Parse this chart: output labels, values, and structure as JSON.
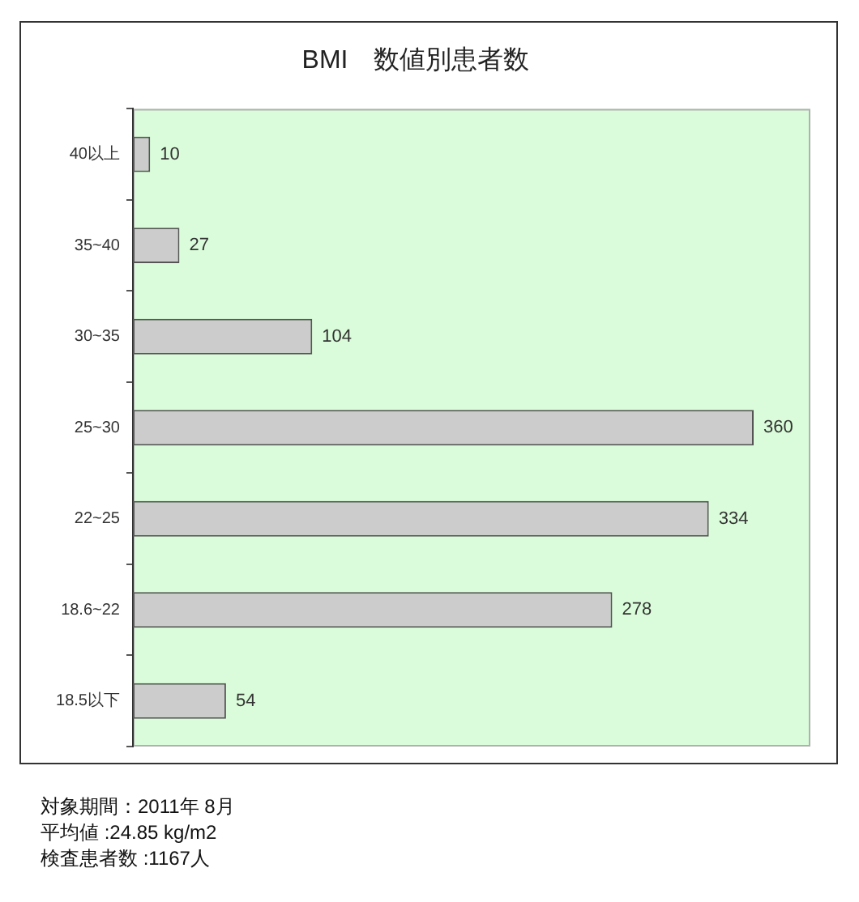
{
  "chart_data": {
    "type": "bar",
    "orientation": "horizontal",
    "title": "BMI　数値別患者数",
    "categories": [
      "40以上",
      "35~40",
      "30~35",
      "25~30",
      "22~25",
      "18.6~22",
      "18.5以下"
    ],
    "values": [
      10,
      27,
      104,
      360,
      334,
      278,
      54
    ],
    "color": "#cccccc",
    "data_labels": true,
    "annotations": [
      "対象期間：2011年 8月",
      "平均値 :24.85 kg/m2",
      "検査患者数 :1167人"
    ]
  }
}
